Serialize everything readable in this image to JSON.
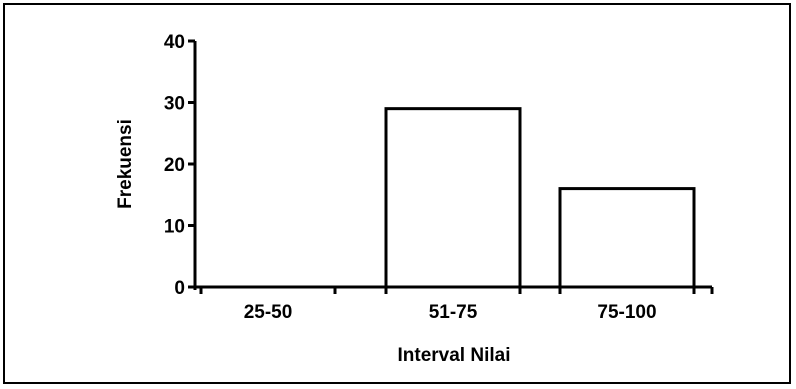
{
  "chart_data": {
    "type": "bar",
    "title": "",
    "xlabel": "Interval Nilai",
    "ylabel": "Frekuensi",
    "categories": [
      "25-50",
      "51-75",
      "75-100"
    ],
    "values": [
      0,
      29,
      16
    ],
    "ylim": [
      0,
      40
    ],
    "yticks": [
      0,
      10,
      20,
      30,
      40
    ],
    "ytick_labels": [
      "0",
      "10",
      "20",
      "30",
      "40"
    ],
    "grid": false,
    "legend": "none",
    "colors": {
      "bar_fill": "#ffffff",
      "bar_stroke": "#000000",
      "axis": "#000000"
    }
  }
}
